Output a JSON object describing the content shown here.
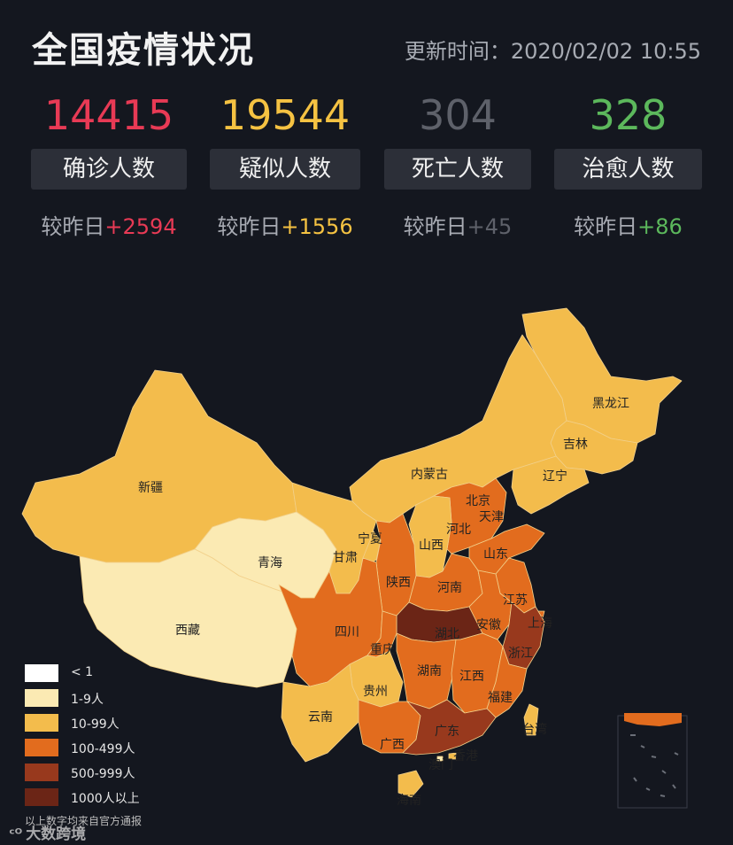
{
  "header": {
    "title": "全国疫情状况",
    "updated": "更新时间：2020/02/02 10:55"
  },
  "stats": [
    {
      "number": "14415",
      "label": "确诊人数",
      "delta_prefix": "较昨日",
      "delta": "+2594",
      "color": "#e83a55"
    },
    {
      "number": "19544",
      "label": "疑似人数",
      "delta_prefix": "较昨日",
      "delta": "+1556",
      "color": "#f5c242"
    },
    {
      "number": "304",
      "label": "死亡人数",
      "delta_prefix": "较昨日",
      "delta": "+45",
      "color": "#5e616a"
    },
    {
      "number": "328",
      "label": "治愈人数",
      "delta_prefix": "较昨日",
      "delta": "+86",
      "color": "#5cb85c"
    }
  ],
  "map": {
    "colors": {
      "lt1": "#ffffff",
      "c1_9": "#fbeab3",
      "c10_99": "#f3bc4c",
      "c100_499": "#e26c1e",
      "c500_999": "#98391d",
      "c1000": "#6b2516"
    },
    "provinces": [
      {
        "name": "黑龙江",
        "tier": "c10_99"
      },
      {
        "name": "吉林",
        "tier": "c10_99"
      },
      {
        "name": "辽宁",
        "tier": "c10_99"
      },
      {
        "name": "内蒙古",
        "tier": "c10_99"
      },
      {
        "name": "新疆",
        "tier": "c10_99"
      },
      {
        "name": "北京",
        "tier": "c100_499"
      },
      {
        "name": "天津",
        "tier": "c10_99"
      },
      {
        "name": "河北",
        "tier": "c100_499"
      },
      {
        "name": "宁夏",
        "tier": "c10_99"
      },
      {
        "name": "山西",
        "tier": "c10_99"
      },
      {
        "name": "山东",
        "tier": "c100_499"
      },
      {
        "name": "青海",
        "tier": "c1_9"
      },
      {
        "name": "甘肃",
        "tier": "c10_99"
      },
      {
        "name": "陕西",
        "tier": "c100_499"
      },
      {
        "name": "河南",
        "tier": "c100_499"
      },
      {
        "name": "江苏",
        "tier": "c100_499"
      },
      {
        "name": "上海",
        "tier": "c100_499"
      },
      {
        "name": "西藏",
        "tier": "c1_9"
      },
      {
        "name": "四川",
        "tier": "c100_499"
      },
      {
        "name": "湖北",
        "tier": "c1000"
      },
      {
        "name": "安徽",
        "tier": "c100_499"
      },
      {
        "name": "浙江",
        "tier": "c500_999"
      },
      {
        "name": "重庆",
        "tier": "c100_499"
      },
      {
        "name": "湖南",
        "tier": "c100_499"
      },
      {
        "name": "江西",
        "tier": "c100_499"
      },
      {
        "name": "贵州",
        "tier": "c10_99"
      },
      {
        "name": "福建",
        "tier": "c100_499"
      },
      {
        "name": "台湾",
        "tier": "c10_99"
      },
      {
        "name": "云南",
        "tier": "c10_99"
      },
      {
        "name": "广西",
        "tier": "c100_499"
      },
      {
        "name": "广东",
        "tier": "c500_999"
      },
      {
        "name": "澳门",
        "tier": "c1_9"
      },
      {
        "name": "香港",
        "tier": "c10_99"
      },
      {
        "name": "海南",
        "tier": "c10_99"
      }
    ]
  },
  "legend": [
    {
      "label": "< 1",
      "tier": "lt1"
    },
    {
      "label": "1-9人",
      "tier": "c1_9"
    },
    {
      "label": "10-99人",
      "tier": "c10_99"
    },
    {
      "label": "100-499人",
      "tier": "c100_499"
    },
    {
      "label": "500-999人",
      "tier": "c500_999"
    },
    {
      "label": "1000人以上",
      "tier": "c1000"
    }
  ],
  "source_note": "以上数字均来自官方通报",
  "watermark": "大数跨境"
}
